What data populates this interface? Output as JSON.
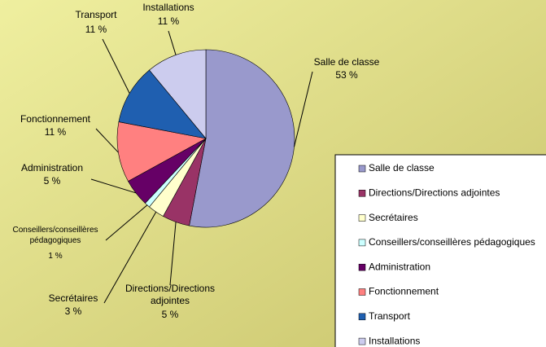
{
  "chart_data": {
    "type": "pie",
    "categories": [
      "Salle de classe",
      "Directions/Directions adjointes",
      "Secrétaires",
      "Conseillers/conseillères pédagogiques",
      "Administration",
      "Fonctionnement",
      "Transport",
      "Installations"
    ],
    "values": [
      53,
      5,
      3,
      1,
      5,
      11,
      11,
      11
    ],
    "value_labels": [
      "53 %",
      "5 %",
      "3 %",
      "1 %",
      "5 %",
      "11 %",
      "11 %",
      "11 %"
    ],
    "colors": [
      "#9999cc",
      "#993366",
      "#ffffcc",
      "#ccffff",
      "#660066",
      "#ff8080",
      "#1f5fb0",
      "#ccccee"
    ],
    "legend": "right"
  }
}
